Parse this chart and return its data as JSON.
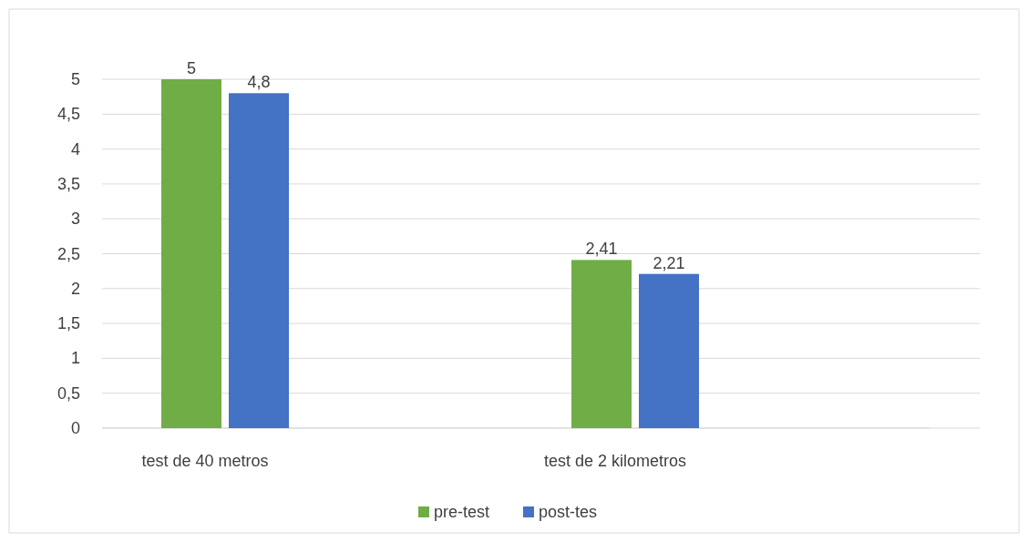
{
  "chart_data": {
    "type": "bar",
    "categories": [
      "test de 40 metros",
      "test de 2 kilometros"
    ],
    "series": [
      {
        "name": "pre-test",
        "color": "#70ad47",
        "values": [
          5,
          2.41
        ],
        "value_labels": [
          "5",
          "2,41"
        ]
      },
      {
        "name": "post-tes",
        "color": "#4472c4",
        "values": [
          4.8,
          2.21
        ],
        "value_labels": [
          "4,8",
          "2,21"
        ]
      }
    ],
    "ylim": [
      0,
      5
    ],
    "yticks": [
      0,
      {
        "value": 0.5,
        "label": "0,5"
      },
      1,
      {
        "value": 1.5,
        "label": "1,5"
      },
      2,
      {
        "value": 2.5,
        "label": "2,5"
      },
      3,
      {
        "value": 3.5,
        "label": "3,5"
      },
      4,
      {
        "value": 4.5,
        "label": "4,5"
      },
      5
    ],
    "grid": "y",
    "legend": "bottom"
  }
}
